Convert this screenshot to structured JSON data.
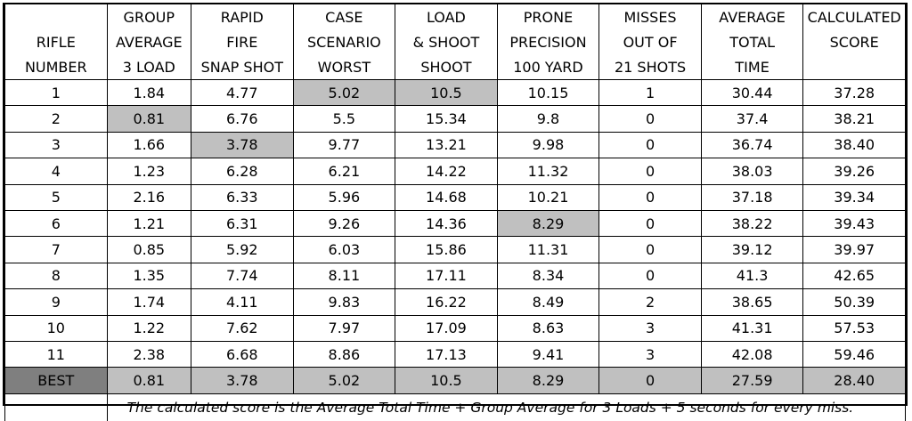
{
  "headers": [
    [
      "",
      "GROUP",
      "RAPID",
      "CASE",
      "LOAD",
      "PRONE",
      "MISSES",
      "AVERAGE",
      "CALCULATED"
    ],
    [
      "RIFLE",
      "AVERAGE",
      "FIRE",
      "SCENARIO",
      "& SHOOT",
      "PRECISION",
      "OUT OF",
      "TOTAL",
      "SCORE"
    ],
    [
      "NUMBER",
      "3 LOAD",
      "SNAP SHOT",
      "WORST",
      "SHOOT",
      "100 YARD",
      "21 SHOTS",
      "TIME",
      ""
    ]
  ],
  "rows": [
    {
      "cells": [
        "1",
        "1.84",
        "4.77",
        "5.02",
        "10.5",
        "10.15",
        "1",
        "30.44",
        "37.28"
      ],
      "highlight": [
        3,
        4
      ]
    },
    {
      "cells": [
        "2",
        "0.81",
        "6.76",
        "5.5",
        "15.34",
        "9.8",
        "0",
        "37.4",
        "38.21"
      ],
      "highlight": [
        1
      ]
    },
    {
      "cells": [
        "3",
        "1.66",
        "3.78",
        "9.77",
        "13.21",
        "9.98",
        "0",
        "36.74",
        "38.40"
      ],
      "highlight": [
        2
      ]
    },
    {
      "cells": [
        "4",
        "1.23",
        "6.28",
        "6.21",
        "14.22",
        "11.32",
        "0",
        "38.03",
        "39.26"
      ],
      "highlight": []
    },
    {
      "cells": [
        "5",
        "2.16",
        "6.33",
        "5.96",
        "14.68",
        "10.21",
        "0",
        "37.18",
        "39.34"
      ],
      "highlight": []
    },
    {
      "cells": [
        "6",
        "1.21",
        "6.31",
        "9.26",
        "14.36",
        "8.29",
        "0",
        "38.22",
        "39.43"
      ],
      "highlight": [
        5
      ]
    },
    {
      "cells": [
        "7",
        "0.85",
        "5.92",
        "6.03",
        "15.86",
        "11.31",
        "0",
        "39.12",
        "39.97"
      ],
      "highlight": []
    },
    {
      "cells": [
        "8",
        "1.35",
        "7.74",
        "8.11",
        "17.11",
        "8.34",
        "0",
        "41.3",
        "42.65"
      ],
      "highlight": []
    },
    {
      "cells": [
        "9",
        "1.74",
        "4.11",
        "9.83",
        "16.22",
        "8.49",
        "2",
        "38.65",
        "50.39"
      ],
      "highlight": []
    },
    {
      "cells": [
        "10",
        "1.22",
        "7.62",
        "7.97",
        "17.09",
        "8.63",
        "3",
        "41.31",
        "57.53"
      ],
      "highlight": []
    },
    {
      "cells": [
        "11",
        "2.38",
        "6.68",
        "8.86",
        "17.13",
        "9.41",
        "3",
        "42.08",
        "59.46"
      ],
      "highlight": []
    }
  ],
  "best_row": [
    "BEST",
    "0.81",
    "3.78",
    "5.02",
    "10.5",
    "8.29",
    "0",
    "27.59",
    "28.40"
  ],
  "footnote": "The calculated score is the Average Total Time + Group Average for 3 Loads + 5 seconds for every miss.",
  "colors": {
    "highlight": "#c0c0c0",
    "best_label": "#7f7f7f",
    "border": "#000000"
  }
}
